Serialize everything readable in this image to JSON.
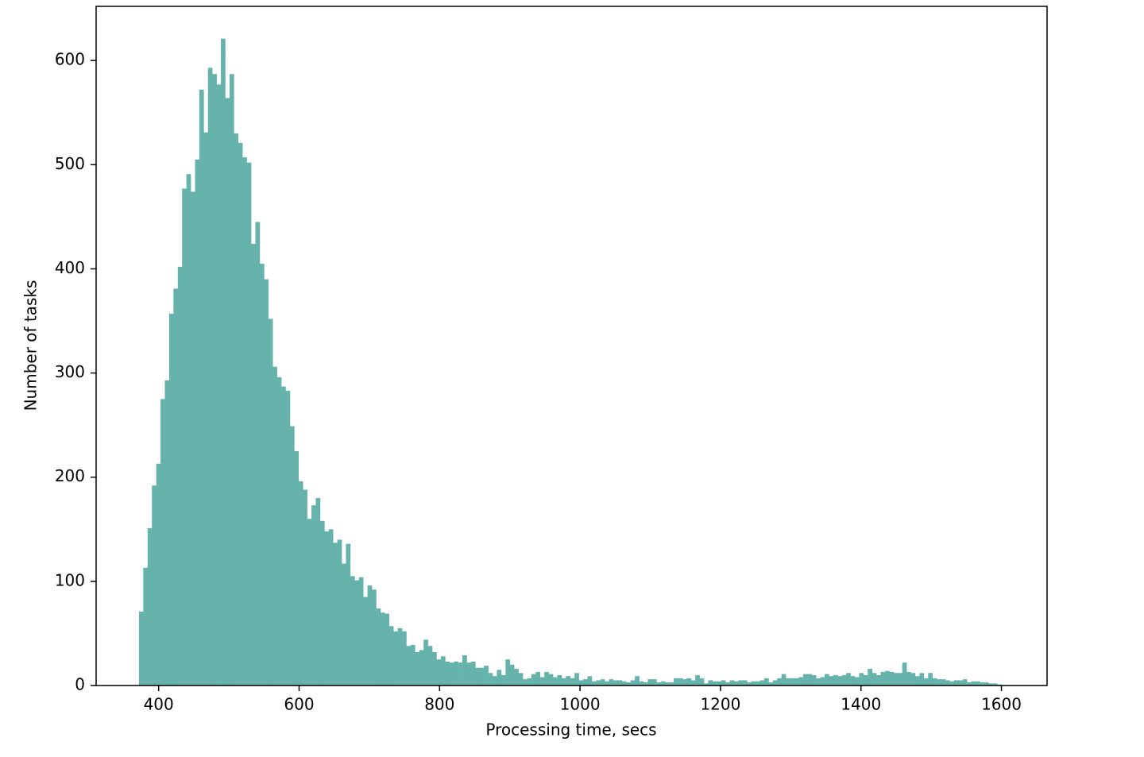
{
  "chart_data": {
    "type": "histogram",
    "xlabel": "Processing time, secs",
    "ylabel": "Number of tasks",
    "color": "#66b3ab",
    "xlim": [
      311,
      1665
    ],
    "ylim": [
      0,
      652
    ],
    "xticks": [
      400,
      600,
      800,
      1000,
      1200,
      1400,
      1600
    ],
    "yticks": [
      0,
      100,
      200,
      300,
      400,
      500,
      600
    ],
    "bins": [
      372,
      378.14,
      384.28,
      390.42,
      396.56,
      402.7,
      408.84,
      414.98,
      421.12,
      427.26,
      433.4,
      439.54,
      445.68,
      451.82,
      457.96,
      464.1,
      470.24,
      476.38,
      482.52,
      488.66,
      494.8,
      500.94,
      507.08,
      513.22,
      519.36,
      525.5,
      531.64,
      537.78,
      543.92,
      550.06,
      556.2,
      562.34,
      568.48,
      574.62,
      580.76,
      586.9,
      593.04,
      599.18,
      605.32,
      611.46,
      617.6,
      623.74,
      629.88,
      636.02,
      642.16,
      648.3,
      654.44,
      660.58,
      666.72,
      672.86,
      679,
      685.14,
      691.28,
      697.42,
      703.56,
      709.7,
      715.84,
      721.98,
      728.12,
      734.26,
      740.4,
      746.54,
      752.68,
      758.82,
      764.96,
      771.1,
      777.24,
      783.38,
      789.52,
      795.66,
      801.8,
      807.94,
      814.08,
      820.22,
      826.36,
      832.5,
      838.64,
      844.78,
      850.92,
      857.06,
      863.2,
      869.34,
      875.48,
      881.62,
      887.76,
      893.9,
      900.04,
      906.18,
      912.32,
      918.46,
      924.6,
      930.74,
      936.88,
      943.02,
      949.16,
      955.3,
      961.44,
      967.58,
      973.72,
      979.86,
      986,
      992.14,
      998.28,
      1004.42,
      1010.56,
      1016.7,
      1022.84,
      1028.98,
      1035.12,
      1041.26,
      1047.4,
      1053.54,
      1059.68,
      1065.82,
      1071.96,
      1078.1,
      1084.24,
      1090.38,
      1096.52,
      1102.66,
      1108.8,
      1114.94,
      1121.08,
      1127.22,
      1133.36,
      1139.5,
      1145.64,
      1151.78,
      1157.92,
      1164.06,
      1170.2,
      1176.34,
      1182.48,
      1188.62,
      1194.76,
      1200.9,
      1207.04,
      1213.18,
      1219.32,
      1225.46,
      1231.6,
      1237.74,
      1243.88,
      1250.02,
      1256.16,
      1262.3,
      1268.44,
      1274.58,
      1280.72,
      1286.86,
      1293,
      1299.14,
      1305.28,
      1311.42,
      1317.56,
      1323.7,
      1329.84,
      1335.98,
      1342.12,
      1348.26,
      1354.4,
      1360.54,
      1366.68,
      1372.82,
      1378.96,
      1385.1,
      1391.24,
      1397.38,
      1403.52,
      1409.66,
      1415.8,
      1421.94,
      1428.08,
      1434.22,
      1440.36,
      1446.5,
      1452.64,
      1458.78,
      1464.92,
      1471.06,
      1477.2,
      1483.34,
      1489.48,
      1495.62,
      1501.76,
      1507.9,
      1514.04,
      1520.18,
      1526.32,
      1532.46,
      1538.6,
      1544.74,
      1550.88,
      1557.02,
      1563.16,
      1569.3,
      1575.44,
      1581.58,
      1587.72,
      1593.86,
      1600
    ],
    "values": [
      71,
      113,
      151,
      192,
      213,
      275,
      293,
      357,
      381,
      402,
      477,
      491,
      474,
      505,
      572,
      531,
      593,
      587,
      577,
      621,
      564,
      587,
      530,
      521,
      507,
      502,
      424,
      445,
      405,
      390,
      352,
      306,
      296,
      287,
      283,
      249,
      225,
      196,
      188,
      160,
      173,
      180,
      158,
      148,
      150,
      137,
      140,
      117,
      136,
      105,
      101,
      104,
      85,
      96,
      92,
      74,
      70,
      69,
      57,
      52,
      55,
      52,
      38,
      39,
      32,
      34,
      44,
      38,
      32,
      25,
      28,
      23,
      22,
      23,
      22,
      29,
      22,
      23,
      17,
      17,
      19,
      12,
      9,
      15,
      10,
      25,
      20,
      16,
      12,
      6,
      7,
      11,
      13,
      8,
      13,
      11,
      8,
      10,
      7,
      9,
      7,
      12,
      5,
      6,
      9,
      4,
      5,
      6,
      4,
      6,
      5,
      5,
      4,
      3,
      5,
      9,
      4,
      3,
      6,
      6,
      3,
      4,
      3,
      3,
      7,
      7,
      6,
      7,
      5,
      10,
      7,
      2,
      5,
      4,
      4,
      5,
      3,
      5,
      4,
      5,
      5,
      3,
      4,
      4,
      5,
      7,
      3,
      5,
      7,
      11,
      7,
      7,
      7,
      8,
      11,
      11,
      10,
      7,
      8,
      11,
      9,
      10,
      9,
      10,
      12,
      9,
      8,
      12,
      10,
      16,
      12,
      10,
      13,
      14,
      13,
      12,
      12,
      22,
      13,
      12,
      9,
      12,
      7,
      12,
      7,
      6,
      6,
      5,
      4,
      5,
      5,
      6,
      3,
      4,
      4,
      3,
      3,
      2,
      2,
      1
    ]
  }
}
